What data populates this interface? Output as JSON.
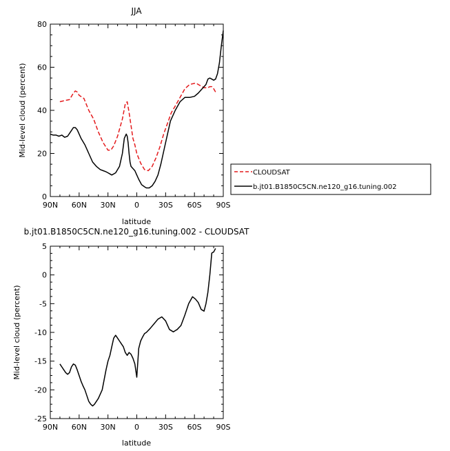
{
  "chart_data": [
    {
      "type": "line",
      "title": "JJA",
      "xlabel": "latitude",
      "ylabel": "Mid-level cloud (percent)",
      "xticks": [
        "90N",
        "60N",
        "30N",
        "0",
        "30S",
        "60S",
        "90S"
      ],
      "xtick_values": [
        90,
        60,
        30,
        0,
        -30,
        -60,
        -90
      ],
      "xlim": [
        90,
        -90
      ],
      "ylim": [
        0,
        80
      ],
      "yticks": [
        0,
        20,
        40,
        60,
        80
      ],
      "legend_position": "outside-right",
      "series": [
        {
          "name": "CLOUDSAT",
          "color": "#e41a1c",
          "dash": "dashed",
          "x": [
            80,
            75,
            70,
            68,
            66,
            64,
            62,
            60,
            55,
            50,
            45,
            40,
            35,
            30,
            27,
            24,
            20,
            15,
            12,
            10,
            8,
            6,
            4,
            2,
            0,
            -4,
            -8,
            -12,
            -16,
            -20,
            -24,
            -28,
            -32,
            -36,
            -40,
            -45,
            -50,
            -55,
            -60,
            -62,
            -64,
            -66,
            -68,
            -70,
            -72,
            -74,
            -76,
            -78,
            -80,
            -82
          ],
          "y": [
            44,
            44.5,
            45,
            46.5,
            48,
            49,
            48.5,
            47,
            45.5,
            40,
            36,
            30,
            25,
            21.5,
            21.5,
            23.5,
            28,
            36,
            43,
            44,
            39,
            33,
            27,
            24,
            20,
            15.5,
            12.5,
            12,
            14,
            18,
            23,
            29,
            34,
            39,
            42,
            46,
            50,
            52,
            52.5,
            52.5,
            52,
            51.5,
            51,
            50.5,
            50.5,
            50.5,
            51,
            51,
            50,
            48.5
          ]
        },
        {
          "name": "b.jt01.B1850C5CN.ne120_g16.tuning.002",
          "color": "#000000",
          "dash": "solid",
          "x": [
            90,
            87,
            84,
            81,
            78,
            75,
            72,
            69,
            66,
            64,
            62,
            58,
            54,
            50,
            46,
            42,
            38,
            35,
            32,
            30,
            28,
            26,
            22,
            18,
            15,
            13,
            11,
            10,
            9,
            8,
            7,
            6,
            4,
            2,
            0,
            -2,
            -5,
            -8,
            -10,
            -13,
            -16,
            -19,
            -22,
            -25,
            -30,
            -35,
            -40,
            -45,
            -50,
            -55,
            -60,
            -64,
            -68,
            -72,
            -74,
            -76,
            -78,
            -80,
            -82,
            -84,
            -86,
            -88,
            -90
          ],
          "y": [
            29,
            28.5,
            28.5,
            28,
            28.5,
            27.5,
            28,
            30,
            32,
            32,
            31,
            27,
            24,
            20,
            16,
            14,
            12.5,
            12,
            11.5,
            11,
            10.5,
            10,
            11,
            14,
            20,
            27,
            29,
            28,
            25,
            20,
            16,
            14,
            13,
            12,
            10,
            8,
            5.5,
            4.5,
            4,
            4,
            5,
            7,
            10,
            15,
            25,
            35,
            40,
            44,
            46,
            46,
            46.5,
            48,
            50,
            52,
            54.5,
            55,
            54.5,
            54,
            54.5,
            57,
            62,
            70,
            77
          ]
        }
      ]
    },
    {
      "type": "line",
      "title": "b.jt01.B1850C5CN.ne120_g16.tuning.002 - CLOUDSAT",
      "xlabel": "latitude",
      "ylabel": "Mid-level cloud (percent)",
      "xticks": [
        "90N",
        "60N",
        "30N",
        "0",
        "30S",
        "60S",
        "90S"
      ],
      "xtick_values": [
        90,
        60,
        30,
        0,
        -30,
        -60,
        -90
      ],
      "xlim": [
        90,
        -90
      ],
      "ylim": [
        -25,
        5
      ],
      "yticks": [
        -25,
        -20,
        -15,
        -10,
        -5,
        0,
        5
      ],
      "series": [
        {
          "color": "#000000",
          "dash": "solid",
          "x": [
            80,
            78,
            76,
            74,
            72,
            70,
            68,
            66,
            64,
            62,
            60,
            58,
            56,
            54,
            52,
            50,
            48,
            46,
            44,
            40,
            36,
            32,
            30,
            28,
            26,
            24,
            22,
            20,
            18,
            16,
            14,
            12,
            10,
            8,
            6,
            4,
            2,
            0,
            -2,
            -4,
            -6,
            -8,
            -10,
            -14,
            -18,
            -22,
            -26,
            -30,
            -34,
            -38,
            -42,
            -46,
            -50,
            -54,
            -58,
            -61,
            -64,
            -67,
            -70,
            -72,
            -74,
            -76,
            -78,
            -80,
            -82
          ],
          "y": [
            -15.5,
            -16,
            -16.5,
            -17,
            -17.3,
            -17,
            -16,
            -15.5,
            -15.7,
            -16.5,
            -17.5,
            -18.5,
            -19.3,
            -20,
            -21,
            -22,
            -22.5,
            -22.8,
            -22.5,
            -21.5,
            -20,
            -16.5,
            -15,
            -14,
            -12.5,
            -11,
            -10.5,
            -11,
            -11.5,
            -12,
            -12.5,
            -13.5,
            -14,
            -13.5,
            -13.8,
            -14.5,
            -15.5,
            -17.8,
            -12.8,
            -11.5,
            -10.8,
            -10.2,
            -10,
            -9.3,
            -8.5,
            -7.7,
            -7.3,
            -8,
            -9.5,
            -9.9,
            -9.5,
            -8.8,
            -7,
            -5,
            -3.8,
            -4.2,
            -4.8,
            -6,
            -6.3,
            -5,
            -3,
            0,
            3.8,
            4,
            4.6
          ]
        }
      ]
    }
  ]
}
